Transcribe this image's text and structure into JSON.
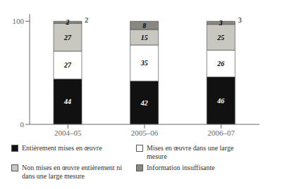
{
  "chart_data": {
    "type": "bar",
    "stacked": true,
    "categories": [
      "2004–05",
      "2005–06",
      "2006–07"
    ],
    "series": [
      {
        "name": "Entièrement mises en œuvre",
        "color": "#111111",
        "values": [
          44,
          42,
          46
        ]
      },
      {
        "name": "Mises en œuvre dans une large mesure",
        "color": "#ffffff",
        "values": [
          27,
          35,
          26
        ]
      },
      {
        "name": "Non mises en œuvre entièrement ni dans une large mesure",
        "color": "#c8c8c0",
        "values": [
          27,
          15,
          25
        ]
      },
      {
        "name": "Information insuffisante",
        "color": "#888880",
        "values": [
          2,
          8,
          3
        ]
      }
    ],
    "ylim": [
      0,
      107
    ],
    "yticks": [
      0,
      100
    ],
    "grid": false,
    "legend": "bottom",
    "data_labels": true,
    "annotations": [
      {
        "text": "2",
        "x": "2004–05",
        "y": 101
      },
      {
        "text": "3",
        "x": "2006–07",
        "y": 101
      }
    ]
  }
}
